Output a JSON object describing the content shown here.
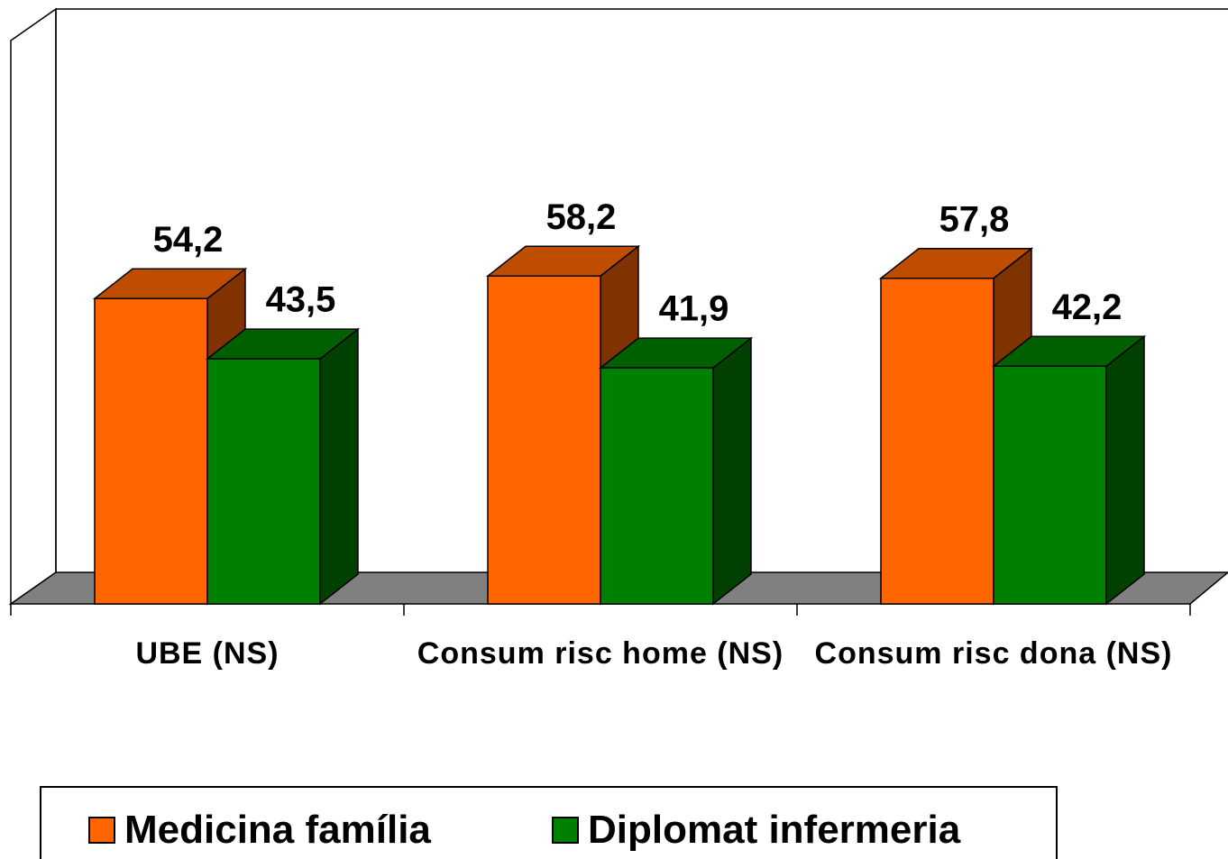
{
  "chart_data": {
    "type": "bar3d",
    "categories": [
      "UBE (NS)",
      "Consum risc home (NS)",
      "Consum risc dona (NS)"
    ],
    "series": [
      {
        "name": "Medicina família",
        "color": "#ff6600",
        "values": [
          54.2,
          58.2,
          57.8
        ],
        "value_labels": [
          "54,2",
          "58,2",
          "57,8"
        ]
      },
      {
        "name": "Diplomat infermeria",
        "color": "#008000",
        "values": [
          43.5,
          41.9,
          42.2
        ],
        "value_labels": [
          "43,5",
          "41,9",
          "42,2"
        ]
      }
    ],
    "ylim": [
      0,
      100
    ],
    "legend": "bottom"
  }
}
